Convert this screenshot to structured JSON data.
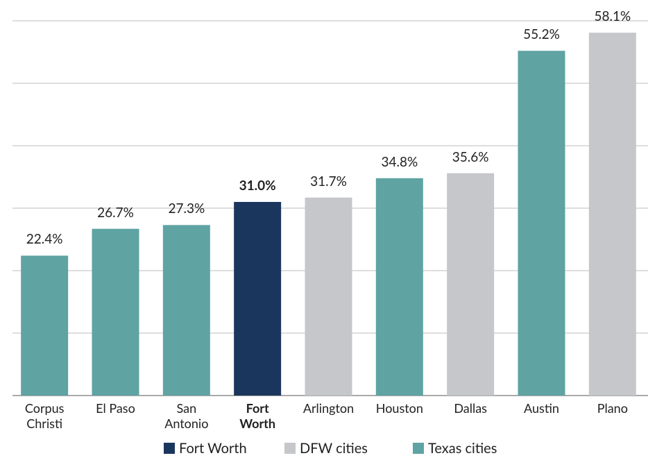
{
  "chart_data": {
    "type": "bar",
    "categories": [
      "Corpus Christi",
      "El Paso",
      "San Antonio",
      "Fort Worth",
      "Arlington",
      "Houston",
      "Dallas",
      "Austin",
      "Plano"
    ],
    "values": [
      22.4,
      26.7,
      27.3,
      31.0,
      31.7,
      34.8,
      35.6,
      55.2,
      58.1
    ],
    "value_labels": [
      "22.4%",
      "26.7%",
      "27.3%",
      "31.0%",
      "31.7%",
      "34.8%",
      "35.6%",
      "55.2%",
      "58.1%"
    ],
    "colors": [
      "#5fa3a3",
      "#5fa3a3",
      "#5fa3a3",
      "#1b365d",
      "#c5c7ca",
      "#5fa3a3",
      "#c5c7ca",
      "#5fa3a3",
      "#c5c7ca"
    ],
    "legend": [
      {
        "name": "Fort Worth",
        "color": "#1b365d"
      },
      {
        "name": "DFW cities",
        "color": "#c5c7ca"
      },
      {
        "name": "Texas cities",
        "color": "#5fa3a3"
      }
    ],
    "ylim": [
      0,
      60
    ],
    "yticks": [
      0,
      10,
      20,
      30,
      40,
      50,
      60
    ],
    "grid": true
  }
}
